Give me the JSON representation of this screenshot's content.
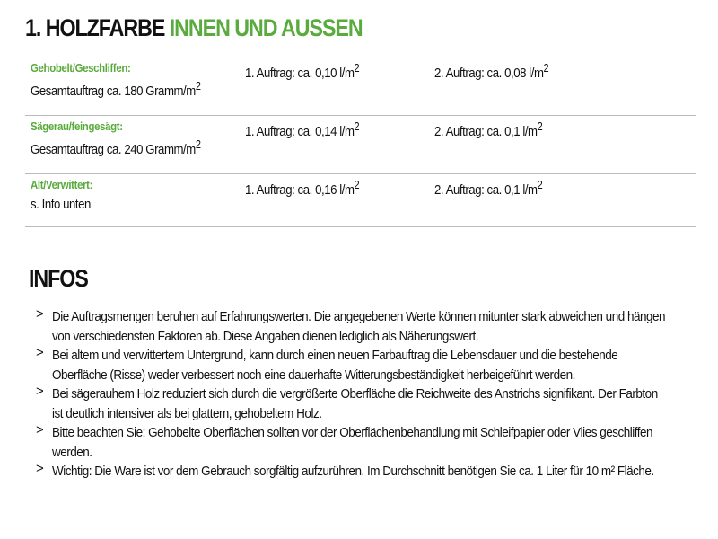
{
  "title": {
    "part1": "1. HOLZFARBE",
    "part2": "INNEN UND AUSSEN"
  },
  "rows": [
    {
      "label": "Gehobelt/Geschliffen:",
      "sub": "Gesamtauftrag ca. 180 Gramm/m",
      "sub_sup": "2",
      "coat1": "1. Auftrag: ca. 0,10 l/m",
      "coat2": "2. Auftrag: ca. 0,08 l/m",
      "sup": "2"
    },
    {
      "label": "Sägerau/feingesägt:",
      "sub": "Gesamtauftrag ca. 240 Gramm/m",
      "sub_sup": "2",
      "coat1": "1. Auftrag: ca. 0,14 l/m",
      "coat2": "2. Auftrag: ca. 0,1 l/m",
      "sup": "2"
    },
    {
      "label": "Alt/Verwittert:",
      "sub": "s. Info unten",
      "sub_sup": "",
      "coat1": "1. Auftrag: ca. 0,16 l/m",
      "coat2": "2. Auftrag: ca. 0,1 l/m",
      "sup": "2"
    }
  ],
  "infos": {
    "heading": "INFOS",
    "bullet": ">",
    "items": [
      "Die Auftragsmengen beruhen auf Erfahrungswerten. Die angegebenen Werte können mitunter stark abweichen und hängen von verschiedensten Faktoren ab. Diese Angaben dienen lediglich als Näherungswert.",
      "Bei altem und verwittertem Untergrund, kann durch einen neuen Farbauftrag die Lebensdauer und die bestehende Oberfläche (Risse) weder verbessert noch eine dauerhafte Witterungsbeständigkeit herbeigeführt werden.",
      "Bei sägerauhem Holz reduziert sich durch die vergrößerte Oberfläche die Reichweite des Anstrichs signifikant. Der Farbton ist deutlich intensiver als bei glattem, gehobeltem Holz.",
      "Bitte beachten Sie: Gehobelte Oberflächen sollten vor der Oberflächenbehandlung mit Schleifpapier oder Vlies geschliffen werden.",
      "Wichtig: Die Ware ist vor dem Gebrauch sorgfältig aufzurühren. Im Durchschnitt benötigen Sie ca. 1 Liter für 10 m² Fläche."
    ]
  },
  "colors": {
    "accent": "#5aab3d"
  }
}
